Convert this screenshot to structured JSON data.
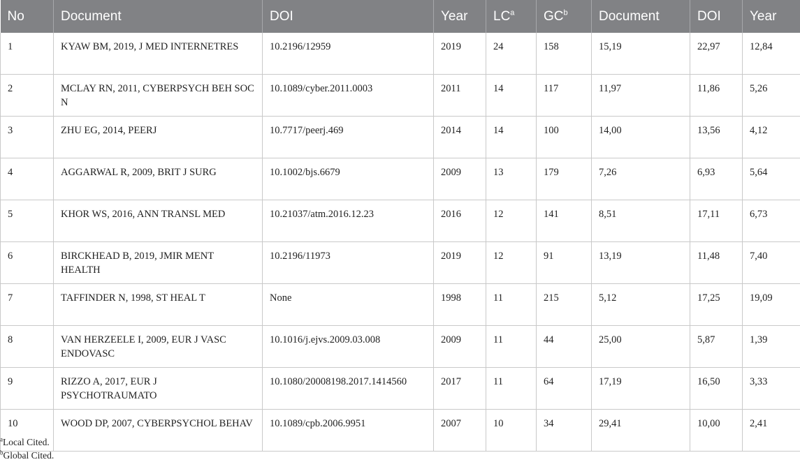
{
  "table": {
    "headers": [
      {
        "label": "No",
        "sup": ""
      },
      {
        "label": "Document",
        "sup": ""
      },
      {
        "label": "DOI",
        "sup": ""
      },
      {
        "label": "Year",
        "sup": ""
      },
      {
        "label": "LC",
        "sup": "a"
      },
      {
        "label": "GC",
        "sup": "b"
      },
      {
        "label": "Document",
        "sup": ""
      },
      {
        "label": "DOI",
        "sup": ""
      },
      {
        "label": "Year",
        "sup": ""
      }
    ],
    "rows": [
      {
        "no": "1",
        "document": "KYAW BM, 2019, J MED INTERNETRES",
        "doi": "10.2196/12959",
        "year": "2019",
        "lc": "24",
        "gc": "158",
        "document_ratio": "15,19",
        "doi_ratio": "22,97",
        "year_ratio": "12,84"
      },
      {
        "no": "2",
        "document": "MCLAY RN, 2011, CYBERPSYCH BEH SOC N",
        "doi": "10.1089/cyber.2011.0003",
        "year": "2011",
        "lc": "14",
        "gc": "117",
        "document_ratio": "11,97",
        "doi_ratio": "11,86",
        "year_ratio": "5,26"
      },
      {
        "no": "3",
        "document": "ZHU EG, 2014, PEERJ",
        "doi": "10.7717/peerj.469",
        "year": "2014",
        "lc": "14",
        "gc": "100",
        "document_ratio": "14,00",
        "doi_ratio": "13,56",
        "year_ratio": "4,12"
      },
      {
        "no": "4",
        "document": "AGGARWAL R, 2009, BRIT J SURG",
        "doi": "10.1002/bjs.6679",
        "year": "2009",
        "lc": "13",
        "gc": "179",
        "document_ratio": "7,26",
        "doi_ratio": "6,93",
        "year_ratio": "5,64"
      },
      {
        "no": "5",
        "document": "KHOR WS, 2016, ANN TRANSL MED",
        "doi": "10.21037/atm.2016.12.23",
        "year": "2016",
        "lc": "12",
        "gc": "141",
        "document_ratio": "8,51",
        "doi_ratio": "17,11",
        "year_ratio": "6,73"
      },
      {
        "no": "6",
        "document": "BIRCKHEAD B, 2019, JMIR MENT HEALTH",
        "doi": "10.2196/11973",
        "year": "2019",
        "lc": "12",
        "gc": "91",
        "document_ratio": "13,19",
        "doi_ratio": "11,48",
        "year_ratio": "7,40"
      },
      {
        "no": "7",
        "document": "TAFFINDER N, 1998, ST HEAL T",
        "doi": "None",
        "year": "1998",
        "lc": "11",
        "gc": "215",
        "document_ratio": "5,12",
        "doi_ratio": "17,25",
        "year_ratio": "19,09"
      },
      {
        "no": "8",
        "document": "VAN HERZEELE I, 2009, EUR J VASC ENDOVASC",
        "doi": "10.1016/j.ejvs.2009.03.008",
        "year": "2009",
        "lc": "11",
        "gc": "44",
        "document_ratio": "25,00",
        "doi_ratio": "5,87",
        "year_ratio": "1,39"
      },
      {
        "no": "9",
        "document": "RIZZO A, 2017, EUR J PSYCHOTRAUMATO",
        "doi": "10.1080/20008198.2017.1414560",
        "year": "2017",
        "lc": "11",
        "gc": "64",
        "document_ratio": "17,19",
        "doi_ratio": "16,50",
        "year_ratio": "3,33"
      },
      {
        "no": "10",
        "document": "WOOD DP, 2007, CYBERPSYCHOL BEHAV",
        "doi": "10.1089/cpb.2006.9951",
        "year": "2007",
        "lc": "10",
        "gc": "34",
        "document_ratio": "29,41",
        "doi_ratio": "10,00",
        "year_ratio": "2,41"
      }
    ]
  },
  "footnotes": [
    {
      "marker": "a",
      "text": "Local Cited."
    },
    {
      "marker": "b",
      "text": "Global Cited."
    }
  ]
}
